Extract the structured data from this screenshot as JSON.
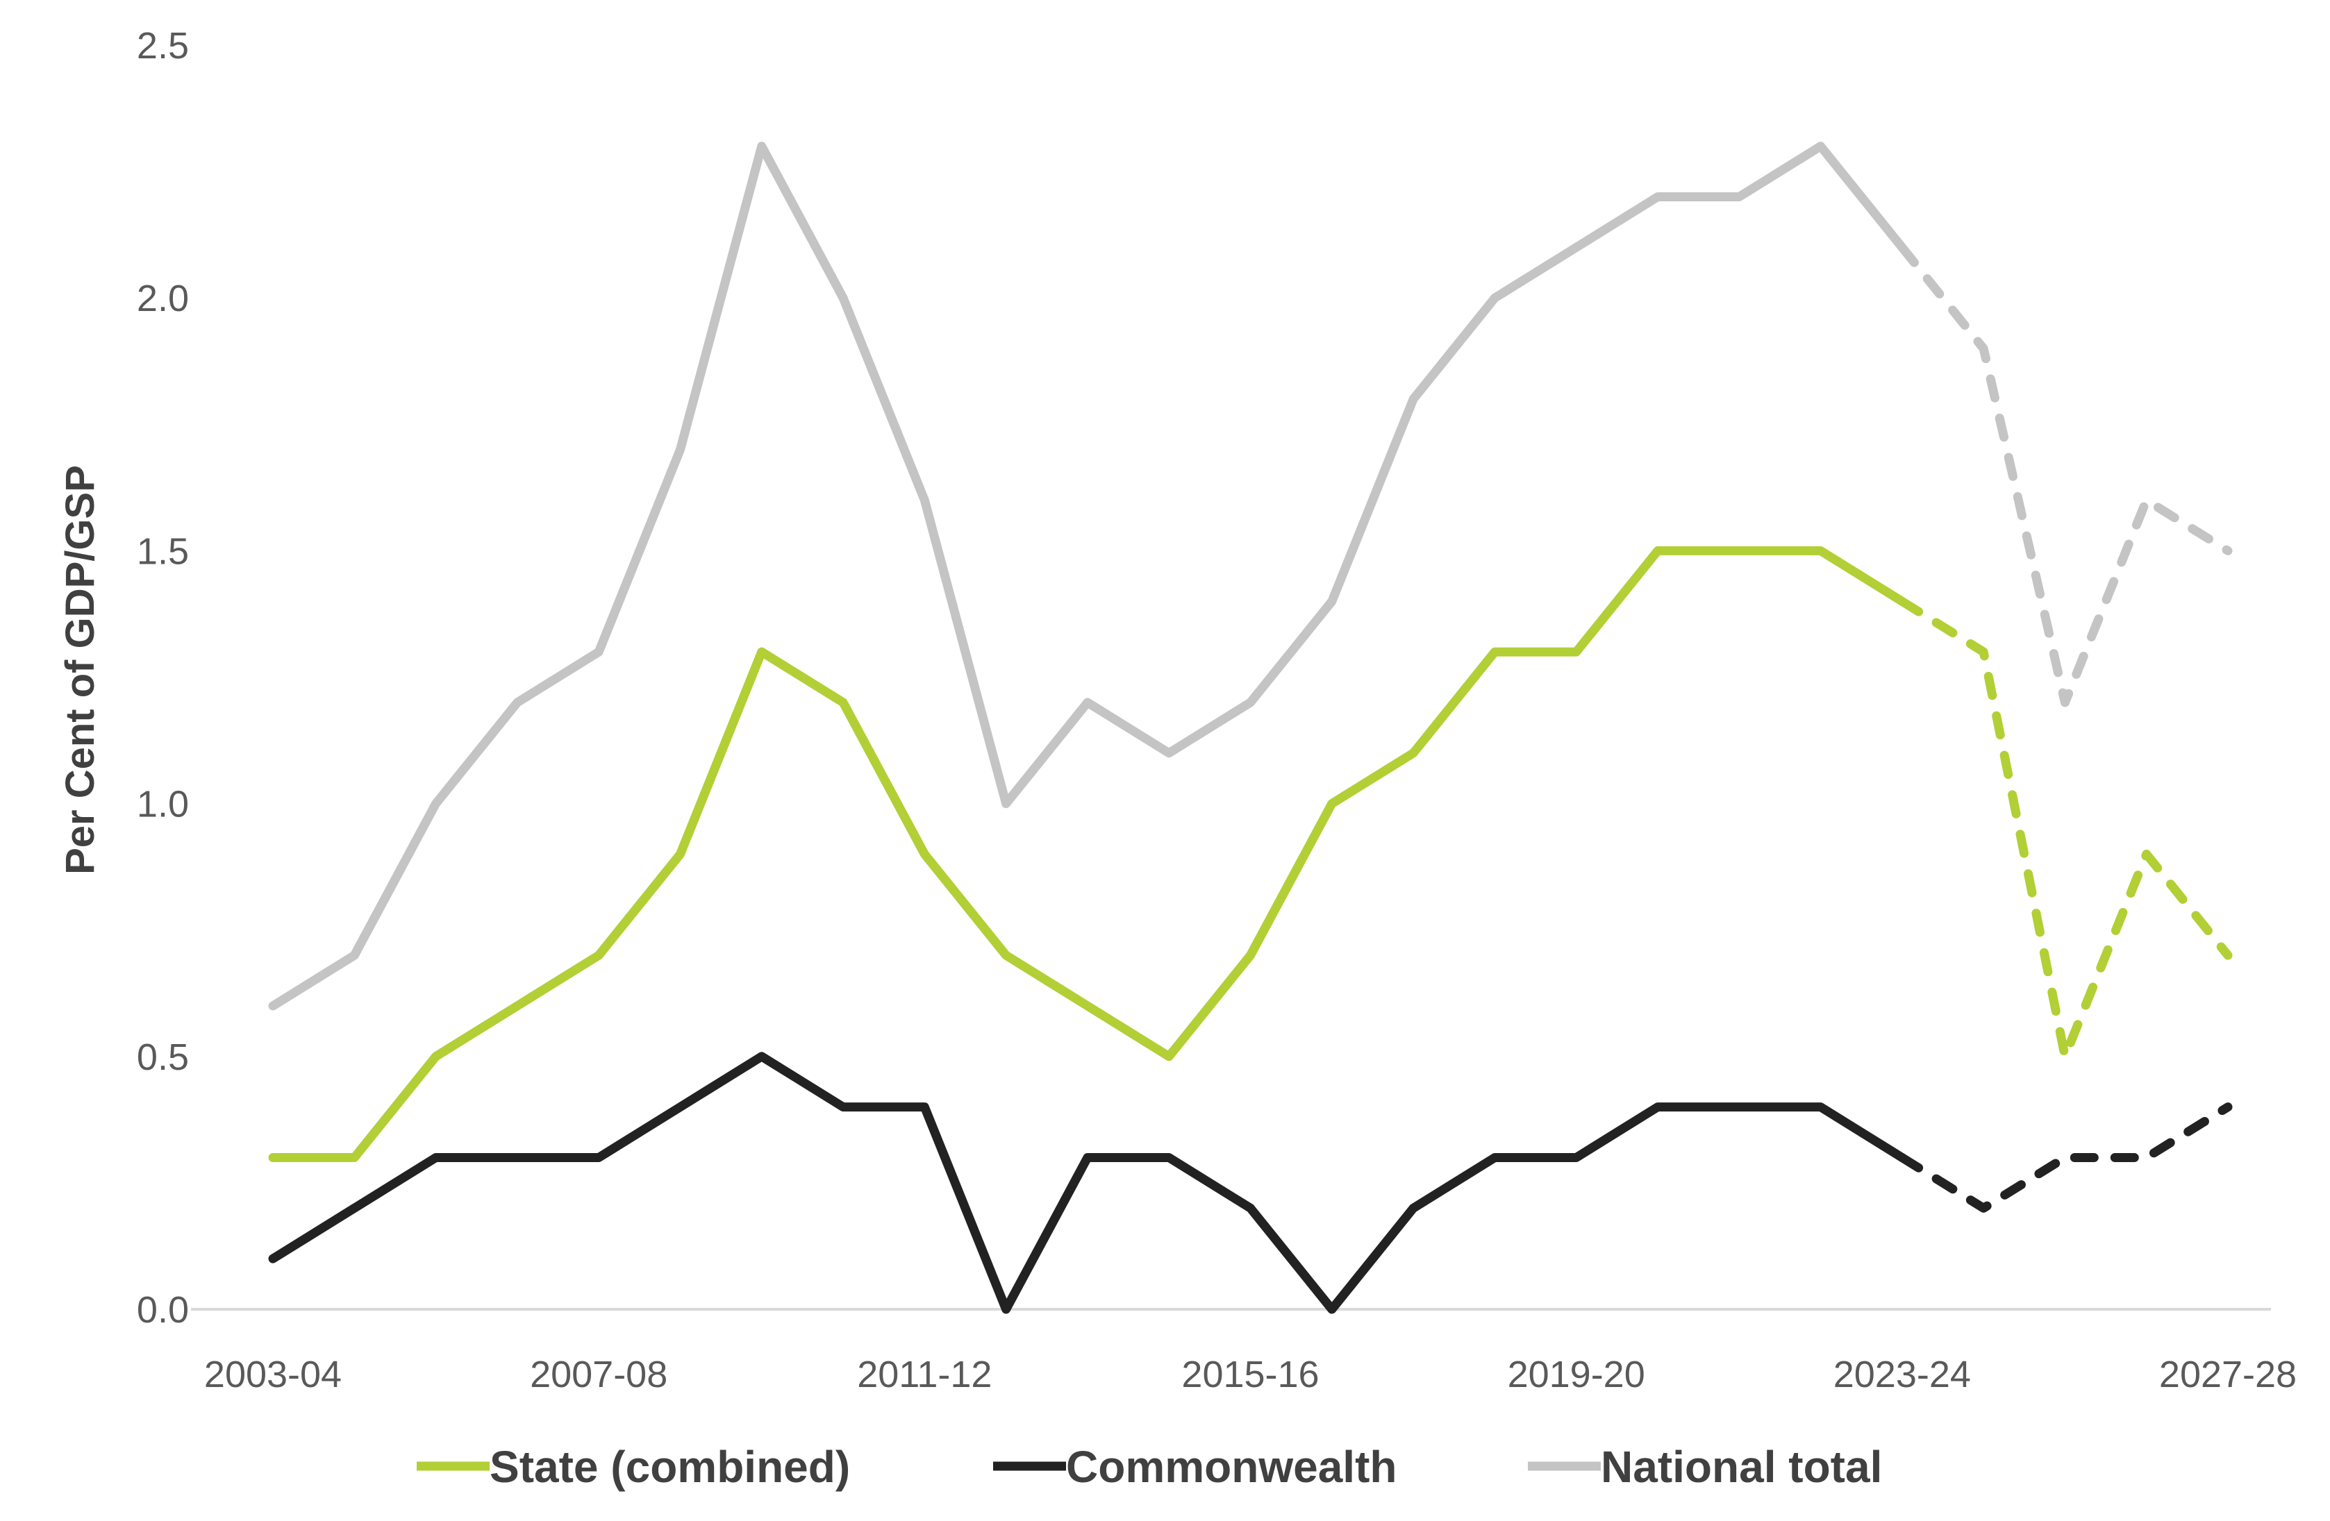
{
  "chart_data": {
    "type": "line",
    "title": "",
    "xlabel": "",
    "ylabel": "Per Cent of GDP/GSP",
    "ylim": [
      0,
      2.5
    ],
    "yticks": [
      "0.0",
      "0.5",
      "1.0",
      "1.5",
      "2.0",
      "2.5"
    ],
    "x": [
      "2003-04",
      "2004-05",
      "2005-06",
      "2006-07",
      "2007-08",
      "2008-09",
      "2009-10",
      "2010-11",
      "2011-12",
      "2012-13",
      "2013-14",
      "2014-15",
      "2015-16",
      "2016-17",
      "2017-18",
      "2018-19",
      "2019-20",
      "2020-21",
      "2021-22",
      "2022-23",
      "2023-24",
      "2024-25",
      "2025-26",
      "2026-27",
      "2027-28"
    ],
    "xtick_labels": [
      "2003-04",
      "2007-08",
      "2011-12",
      "2015-16",
      "2019-20",
      "2023-24",
      "2027-28"
    ],
    "projection_start": "2023-24",
    "grid": false,
    "legend_position": "bottom",
    "series": [
      {
        "name": "State (combined)",
        "color": "#b2cf35",
        "values": [
          0.3,
          0.3,
          0.5,
          0.6,
          0.7,
          0.9,
          1.3,
          1.2,
          0.9,
          0.7,
          0.6,
          0.5,
          0.7,
          1.0,
          1.1,
          1.3,
          1.3,
          1.5,
          1.5,
          1.5,
          1.4,
          1.3,
          0.5,
          0.9,
          0.7
        ]
      },
      {
        "name": "Commonwealth",
        "color": "#222222",
        "values": [
          0.1,
          0.2,
          0.3,
          0.3,
          0.3,
          0.4,
          0.5,
          0.4,
          0.4,
          0.0,
          0.3,
          0.3,
          0.2,
          0.0,
          0.2,
          0.3,
          0.3,
          0.4,
          0.4,
          0.4,
          0.3,
          0.2,
          0.3,
          0.3,
          0.4
        ]
      },
      {
        "name": "National total",
        "color": "#c4c4c4",
        "values": [
          0.6,
          0.7,
          1.0,
          1.2,
          1.3,
          1.7,
          2.3,
          2.0,
          1.6,
          1.0,
          1.2,
          1.1,
          1.2,
          1.4,
          1.8,
          2.0,
          2.1,
          2.2,
          2.2,
          2.3,
          2.1,
          1.9,
          1.2,
          1.6,
          1.5
        ]
      }
    ]
  }
}
